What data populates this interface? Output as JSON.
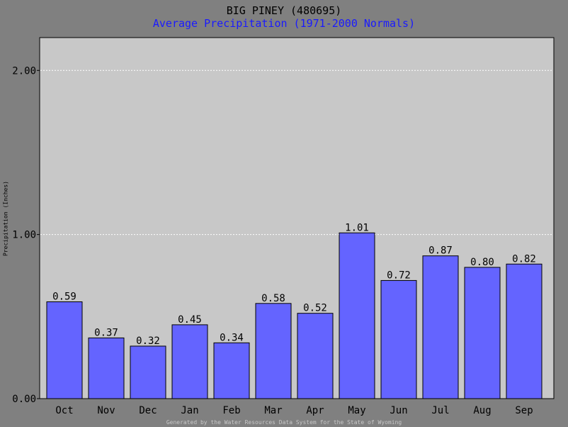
{
  "title": "BIG PINEY (480695)",
  "subtitle": "Average Precipitation (1971-2000 Normals)",
  "footer": "Generated by the Water Resources Data System for the State of Wyoming",
  "colors": {
    "page_bg": "#808080",
    "plot_bg": "#c8c8c8",
    "bar": "#6464ff",
    "subtitle": "#1a1aff",
    "grid": "#ffffff"
  },
  "chart_data": {
    "type": "bar",
    "title": "BIG PINEY (480695)",
    "subtitle": "Average Precipitation (1971-2000 Normals)",
    "xlabel": "",
    "ylabel": "Precipitation (Inches)",
    "categories": [
      "Oct",
      "Nov",
      "Dec",
      "Jan",
      "Feb",
      "Mar",
      "Apr",
      "May",
      "Jun",
      "Jul",
      "Aug",
      "Sep"
    ],
    "values": [
      0.59,
      0.37,
      0.32,
      0.45,
      0.34,
      0.58,
      0.52,
      1.01,
      0.72,
      0.87,
      0.8,
      0.82
    ],
    "value_labels": [
      "0.59",
      "0.37",
      "0.32",
      "0.45",
      "0.34",
      "0.58",
      "0.52",
      "1.01",
      "0.72",
      "0.87",
      "0.80",
      "0.82"
    ],
    "yticks": [
      0,
      1,
      2
    ],
    "ytick_labels": [
      "0.00",
      "1.00",
      "2.00"
    ],
    "ylim": [
      0,
      2.2
    ],
    "grid": true,
    "legend": "none"
  }
}
